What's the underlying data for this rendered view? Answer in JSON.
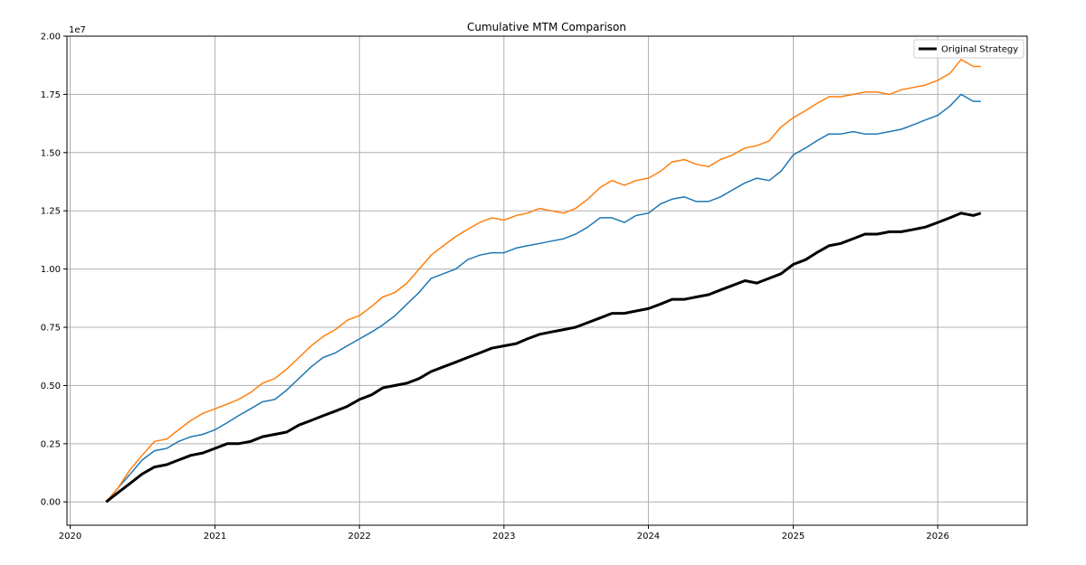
{
  "chart_data": {
    "type": "line",
    "title": "Cumulative MTM Comparison",
    "xlabel": "",
    "ylabel": "",
    "y_multiplier_label": "1e7",
    "xlim": [
      "2019-12-24",
      "2026-08-15"
    ],
    "ylim": [
      -0.1,
      2.0
    ],
    "x_ticks": [
      "2020-01-01",
      "2021-01-01",
      "2022-01-01",
      "2023-01-01",
      "2024-01-01",
      "2025-01-01",
      "2026-01-01"
    ],
    "x_tick_labels": [
      "2020",
      "2021",
      "2022",
      "2023",
      "2024",
      "2025",
      "2026"
    ],
    "y_ticks": [
      0.0,
      0.25,
      0.5,
      0.75,
      1.0,
      1.25,
      1.5,
      1.75,
      2.0
    ],
    "y_tick_labels": [
      "0.00",
      "0.25",
      "0.50",
      "0.75",
      "1.00",
      "1.25",
      "1.50",
      "1.75",
      "2.00"
    ],
    "grid": true,
    "legend_position": "top-right",
    "series": [
      {
        "name": "Original Strategy",
        "color": "#000000",
        "in_legend": true,
        "x": [
          "2020-04-01",
          "2020-05-01",
          "2020-06-01",
          "2020-07-01",
          "2020-08-01",
          "2020-09-01",
          "2020-10-01",
          "2020-11-01",
          "2020-12-01",
          "2021-01-01",
          "2021-02-01",
          "2021-03-01",
          "2021-04-01",
          "2021-05-01",
          "2021-06-01",
          "2021-07-01",
          "2021-08-01",
          "2021-09-01",
          "2021-10-01",
          "2021-11-01",
          "2021-12-01",
          "2022-01-01",
          "2022-02-01",
          "2022-03-01",
          "2022-04-01",
          "2022-05-01",
          "2022-06-01",
          "2022-07-01",
          "2022-08-01",
          "2022-09-01",
          "2022-10-01",
          "2022-11-01",
          "2022-12-01",
          "2023-01-01",
          "2023-02-01",
          "2023-03-01",
          "2023-04-01",
          "2023-05-01",
          "2023-06-01",
          "2023-07-01",
          "2023-08-01",
          "2023-09-01",
          "2023-10-01",
          "2023-11-01",
          "2023-12-01",
          "2024-01-01",
          "2024-02-01",
          "2024-03-01",
          "2024-04-01",
          "2024-05-01",
          "2024-06-01",
          "2024-07-01",
          "2024-08-01",
          "2024-09-01",
          "2024-10-01",
          "2024-11-01",
          "2024-12-01",
          "2025-01-01",
          "2025-02-01",
          "2025-03-01",
          "2025-04-01",
          "2025-05-01",
          "2025-06-01",
          "2025-07-01",
          "2025-08-01",
          "2025-09-01",
          "2025-10-01",
          "2025-11-01",
          "2025-12-01",
          "2026-01-01",
          "2026-02-01",
          "2026-03-01",
          "2026-04-01",
          "2026-04-20"
        ],
        "values": [
          0.0,
          0.04,
          0.08,
          0.12,
          0.15,
          0.16,
          0.18,
          0.2,
          0.21,
          0.23,
          0.25,
          0.25,
          0.26,
          0.28,
          0.29,
          0.3,
          0.33,
          0.35,
          0.37,
          0.39,
          0.41,
          0.44,
          0.46,
          0.49,
          0.5,
          0.51,
          0.53,
          0.56,
          0.58,
          0.6,
          0.62,
          0.64,
          0.66,
          0.67,
          0.68,
          0.7,
          0.72,
          0.73,
          0.74,
          0.75,
          0.77,
          0.79,
          0.81,
          0.81,
          0.82,
          0.83,
          0.85,
          0.87,
          0.87,
          0.88,
          0.89,
          0.91,
          0.93,
          0.95,
          0.94,
          0.96,
          0.98,
          1.02,
          1.04,
          1.07,
          1.1,
          1.11,
          1.13,
          1.15,
          1.15,
          1.16,
          1.16,
          1.17,
          1.18,
          1.2,
          1.22,
          1.24,
          1.23,
          1.24
        ]
      },
      {
        "name": "",
        "color": "#1f77b4",
        "in_legend": false,
        "x": [
          "2020-04-01",
          "2020-05-01",
          "2020-06-01",
          "2020-07-01",
          "2020-08-01",
          "2020-09-01",
          "2020-10-01",
          "2020-11-01",
          "2020-12-01",
          "2021-01-01",
          "2021-02-01",
          "2021-03-01",
          "2021-04-01",
          "2021-05-01",
          "2021-06-01",
          "2021-07-01",
          "2021-08-01",
          "2021-09-01",
          "2021-10-01",
          "2021-11-01",
          "2021-12-01",
          "2022-01-01",
          "2022-02-01",
          "2022-03-01",
          "2022-04-01",
          "2022-05-01",
          "2022-06-01",
          "2022-07-01",
          "2022-08-01",
          "2022-09-01",
          "2022-10-01",
          "2022-11-01",
          "2022-12-01",
          "2023-01-01",
          "2023-02-01",
          "2023-03-01",
          "2023-04-01",
          "2023-05-01",
          "2023-06-01",
          "2023-07-01",
          "2023-08-01",
          "2023-09-01",
          "2023-10-01",
          "2023-11-01",
          "2023-12-01",
          "2024-01-01",
          "2024-02-01",
          "2024-03-01",
          "2024-04-01",
          "2024-05-01",
          "2024-06-01",
          "2024-07-01",
          "2024-08-01",
          "2024-09-01",
          "2024-10-01",
          "2024-11-01",
          "2024-12-01",
          "2025-01-01",
          "2025-02-01",
          "2025-03-01",
          "2025-04-01",
          "2025-05-01",
          "2025-06-01",
          "2025-07-01",
          "2025-08-01",
          "2025-09-01",
          "2025-10-01",
          "2025-11-01",
          "2025-12-01",
          "2026-01-01",
          "2026-02-01",
          "2026-03-01",
          "2026-04-01",
          "2026-04-20"
        ],
        "values": [
          0.0,
          0.06,
          0.12,
          0.18,
          0.22,
          0.23,
          0.26,
          0.28,
          0.29,
          0.31,
          0.34,
          0.37,
          0.4,
          0.43,
          0.44,
          0.48,
          0.53,
          0.58,
          0.62,
          0.64,
          0.67,
          0.7,
          0.73,
          0.76,
          0.8,
          0.85,
          0.9,
          0.96,
          0.98,
          1.0,
          1.04,
          1.06,
          1.07,
          1.07,
          1.09,
          1.1,
          1.11,
          1.12,
          1.13,
          1.15,
          1.18,
          1.22,
          1.22,
          1.2,
          1.23,
          1.24,
          1.28,
          1.3,
          1.31,
          1.29,
          1.29,
          1.31,
          1.34,
          1.37,
          1.39,
          1.38,
          1.42,
          1.49,
          1.52,
          1.55,
          1.58,
          1.58,
          1.59,
          1.58,
          1.58,
          1.59,
          1.6,
          1.62,
          1.64,
          1.66,
          1.7,
          1.75,
          1.72,
          1.72
        ]
      },
      {
        "name": "",
        "color": "#ff7f0e",
        "in_legend": false,
        "x": [
          "2020-04-01",
          "2020-05-01",
          "2020-06-01",
          "2020-07-01",
          "2020-08-01",
          "2020-09-01",
          "2020-10-01",
          "2020-11-01",
          "2020-12-01",
          "2021-01-01",
          "2021-02-01",
          "2021-03-01",
          "2021-04-01",
          "2021-05-01",
          "2021-06-01",
          "2021-07-01",
          "2021-08-01",
          "2021-09-01",
          "2021-10-01",
          "2021-11-01",
          "2021-12-01",
          "2022-01-01",
          "2022-02-01",
          "2022-03-01",
          "2022-04-01",
          "2022-05-01",
          "2022-06-01",
          "2022-07-01",
          "2022-08-01",
          "2022-09-01",
          "2022-10-01",
          "2022-11-01",
          "2022-12-01",
          "2023-01-01",
          "2023-02-01",
          "2023-03-01",
          "2023-04-01",
          "2023-05-01",
          "2023-06-01",
          "2023-07-01",
          "2023-08-01",
          "2023-09-01",
          "2023-10-01",
          "2023-11-01",
          "2023-12-01",
          "2024-01-01",
          "2024-02-01",
          "2024-03-01",
          "2024-04-01",
          "2024-05-01",
          "2024-06-01",
          "2024-07-01",
          "2024-08-01",
          "2024-09-01",
          "2024-10-01",
          "2024-11-01",
          "2024-12-01",
          "2025-01-01",
          "2025-02-01",
          "2025-03-01",
          "2025-04-01",
          "2025-05-01",
          "2025-06-01",
          "2025-07-01",
          "2025-08-01",
          "2025-09-01",
          "2025-10-01",
          "2025-11-01",
          "2025-12-01",
          "2026-01-01",
          "2026-02-01",
          "2026-03-01",
          "2026-04-01",
          "2026-04-20"
        ],
        "values": [
          0.0,
          0.06,
          0.14,
          0.2,
          0.26,
          0.27,
          0.31,
          0.35,
          0.38,
          0.4,
          0.42,
          0.44,
          0.47,
          0.51,
          0.53,
          0.57,
          0.62,
          0.67,
          0.71,
          0.74,
          0.78,
          0.8,
          0.84,
          0.88,
          0.9,
          0.94,
          1.0,
          1.06,
          1.1,
          1.14,
          1.17,
          1.2,
          1.22,
          1.21,
          1.23,
          1.24,
          1.26,
          1.25,
          1.24,
          1.26,
          1.3,
          1.35,
          1.38,
          1.36,
          1.38,
          1.39,
          1.42,
          1.46,
          1.47,
          1.45,
          1.44,
          1.47,
          1.49,
          1.52,
          1.53,
          1.55,
          1.61,
          1.65,
          1.68,
          1.71,
          1.74,
          1.74,
          1.75,
          1.76,
          1.76,
          1.75,
          1.77,
          1.78,
          1.79,
          1.81,
          1.84,
          1.9,
          1.87,
          1.87
        ]
      }
    ]
  }
}
